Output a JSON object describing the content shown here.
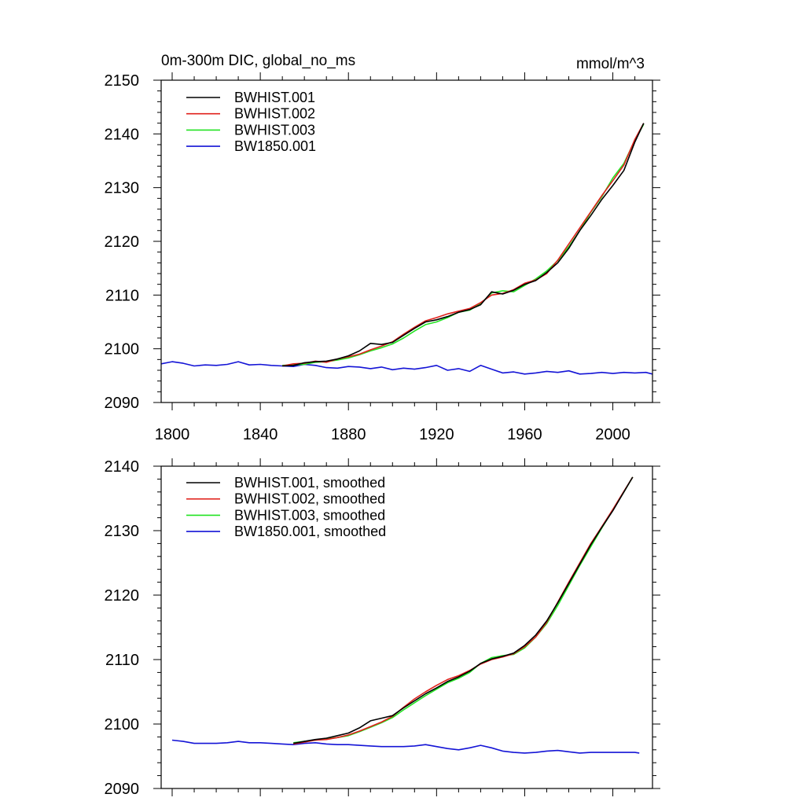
{
  "figure": {
    "title_left": "0m-300m DIC, global_no_ms",
    "title_right": "mmol/m^3"
  },
  "colors": {
    "BWHIST.001": "#000000",
    "BWHIST.002": "#e0201b",
    "BWHIST.003": "#22e322",
    "BW1850.001": "#1414d6"
  },
  "chart_data": [
    {
      "type": "line",
      "title": "0m-300m DIC, global_no_ms",
      "units": "mmol/m^3",
      "xlim": [
        1795,
        2018
      ],
      "ylim": [
        2090,
        2150
      ],
      "xticks": [
        1800,
        1840,
        1880,
        1920,
        1960,
        2000
      ],
      "xtick_labels": [
        "1800",
        "1840",
        "1880",
        "1920",
        "1960",
        "2000"
      ],
      "yticks": [
        2090,
        2100,
        2110,
        2120,
        2130,
        2140,
        2150
      ],
      "ytick_labels": [
        "2090",
        "2100",
        "2110",
        "2120",
        "2130",
        "2140",
        "2150"
      ],
      "legend": "top-left",
      "series": [
        {
          "name": "BWHIST.001",
          "color": "#000000",
          "x": [
            1850,
            1855,
            1860,
            1865,
            1870,
            1875,
            1880,
            1885,
            1890,
            1895,
            1900,
            1905,
            1910,
            1915,
            1920,
            1925,
            1930,
            1935,
            1940,
            1945,
            1950,
            1955,
            1960,
            1965,
            1970,
            1975,
            1980,
            1985,
            1990,
            1995,
            2000,
            2005,
            2010,
            2014
          ],
          "y": [
            2096.8,
            2096.9,
            2097.4,
            2097.6,
            2097.7,
            2098.1,
            2098.7,
            2099.6,
            2101.0,
            2100.8,
            2101.2,
            2102.5,
            2103.8,
            2105.0,
            2105.4,
            2106.0,
            2106.8,
            2107.3,
            2108.2,
            2110.6,
            2110.2,
            2110.9,
            2112.0,
            2112.7,
            2114.2,
            2116.0,
            2118.7,
            2122.0,
            2124.8,
            2127.8,
            2130.4,
            2133.2,
            2138.5,
            2142.0
          ]
        },
        {
          "name": "BWHIST.002",
          "color": "#e0201b",
          "x": [
            1850,
            1855,
            1860,
            1865,
            1870,
            1875,
            1880,
            1885,
            1890,
            1895,
            1900,
            1905,
            1910,
            1915,
            1920,
            1925,
            1930,
            1935,
            1940,
            1945,
            1950,
            1955,
            1960,
            1965,
            1970,
            1975,
            1980,
            1985,
            1990,
            1995,
            2000,
            2005,
            2010,
            2014
          ],
          "y": [
            2096.8,
            2097.2,
            2097.3,
            2097.7,
            2097.5,
            2098.1,
            2098.5,
            2099.0,
            2099.8,
            2100.5,
            2101.3,
            2102.7,
            2104.0,
            2105.2,
            2105.8,
            2106.5,
            2107.0,
            2107.5,
            2108.6,
            2110.0,
            2110.3,
            2111.0,
            2112.2,
            2112.8,
            2114.0,
            2116.5,
            2119.5,
            2122.5,
            2125.5,
            2128.5,
            2131.3,
            2134.2,
            2139.0,
            2142.0
          ]
        },
        {
          "name": "BWHIST.003",
          "color": "#22e322",
          "x": [
            1850,
            1855,
            1860,
            1865,
            1870,
            1875,
            1880,
            1885,
            1890,
            1895,
            1900,
            1905,
            1910,
            1915,
            1920,
            1925,
            1930,
            1935,
            1940,
            1945,
            1950,
            1955,
            1960,
            1965,
            1970,
            1975,
            1980,
            1985,
            1990,
            1995,
            2000,
            2005,
            2010,
            2014
          ],
          "y": [
            2096.9,
            2097.0,
            2097.1,
            2097.5,
            2097.6,
            2097.9,
            2098.3,
            2098.9,
            2099.6,
            2100.2,
            2100.9,
            2102.0,
            2103.3,
            2104.5,
            2105.0,
            2105.8,
            2106.8,
            2107.2,
            2108.4,
            2110.4,
            2110.8,
            2110.6,
            2111.8,
            2113.0,
            2114.5,
            2116.4,
            2119.0,
            2122.0,
            2125.4,
            2128.3,
            2131.8,
            2134.5,
            2138.8,
            2141.8
          ]
        },
        {
          "name": "BW1850.001",
          "color": "#1414d6",
          "x": [
            1795,
            1800,
            1805,
            1810,
            1815,
            1820,
            1825,
            1830,
            1835,
            1840,
            1845,
            1850,
            1855,
            1860,
            1865,
            1870,
            1875,
            1880,
            1885,
            1890,
            1895,
            1900,
            1905,
            1910,
            1915,
            1920,
            1925,
            1930,
            1935,
            1940,
            1945,
            1950,
            1955,
            1960,
            1965,
            1970,
            1975,
            1980,
            1985,
            1990,
            1995,
            2000,
            2005,
            2010,
            2015,
            2018
          ],
          "y": [
            2097.2,
            2097.6,
            2097.3,
            2096.8,
            2097.0,
            2096.9,
            2097.1,
            2097.6,
            2097.0,
            2097.1,
            2096.9,
            2096.8,
            2096.7,
            2097.1,
            2096.9,
            2096.5,
            2096.4,
            2096.7,
            2096.6,
            2096.3,
            2096.6,
            2096.1,
            2096.4,
            2096.2,
            2096.5,
            2096.9,
            2096.0,
            2096.3,
            2095.8,
            2096.9,
            2096.2,
            2095.5,
            2095.7,
            2095.3,
            2095.5,
            2095.8,
            2095.6,
            2095.9,
            2095.3,
            2095.4,
            2095.6,
            2095.4,
            2095.6,
            2095.5,
            2095.6,
            2095.3
          ]
        }
      ]
    },
    {
      "type": "line",
      "title": "",
      "xlim": [
        1795,
        2018
      ],
      "ylim": [
        2090,
        2140
      ],
      "xticks": [
        1800,
        1840,
        1880,
        1920,
        1960,
        2000
      ],
      "yticks": [
        2090,
        2100,
        2110,
        2120,
        2130,
        2140
      ],
      "ytick_labels": [
        "2090",
        "2100",
        "2110",
        "2120",
        "2130",
        "2140"
      ],
      "legend": "top-left",
      "series": [
        {
          "name": "BWHIST.001, smoothed",
          "color": "#000000",
          "x": [
            1855,
            1860,
            1865,
            1870,
            1875,
            1880,
            1885,
            1890,
            1895,
            1900,
            1905,
            1910,
            1915,
            1920,
            1925,
            1930,
            1935,
            1940,
            1945,
            1950,
            1955,
            1960,
            1965,
            1970,
            1975,
            1980,
            1985,
            1990,
            1995,
            2000,
            2005,
            2009
          ],
          "y": [
            2097.0,
            2097.3,
            2097.6,
            2097.8,
            2098.2,
            2098.6,
            2099.4,
            2100.5,
            2100.9,
            2101.3,
            2102.5,
            2103.6,
            2104.7,
            2105.6,
            2106.6,
            2107.3,
            2108.2,
            2109.4,
            2110.1,
            2110.5,
            2111.0,
            2112.2,
            2113.8,
            2116.0,
            2118.8,
            2121.8,
            2124.8,
            2127.8,
            2130.5,
            2133.1,
            2136.0,
            2138.3
          ]
        },
        {
          "name": "BWHIST.002, smoothed",
          "color": "#e0201b",
          "x": [
            1855,
            1860,
            1865,
            1870,
            1875,
            1880,
            1885,
            1890,
            1895,
            1900,
            1905,
            1910,
            1915,
            1920,
            1925,
            1930,
            1935,
            1940,
            1945,
            1950,
            1955,
            1960,
            1965,
            1970,
            1975,
            1980,
            1985,
            1990,
            1995,
            2000,
            2005,
            2009
          ],
          "y": [
            2096.9,
            2097.2,
            2097.5,
            2097.6,
            2097.9,
            2098.3,
            2098.9,
            2099.6,
            2100.3,
            2101.2,
            2102.6,
            2103.9,
            2105.0,
            2106.0,
            2106.9,
            2107.5,
            2108.3,
            2109.3,
            2110.0,
            2110.4,
            2110.9,
            2112.0,
            2113.5,
            2115.8,
            2118.9,
            2122.0,
            2125.0,
            2128.0,
            2130.6,
            2133.3,
            2136.1,
            2138.3
          ]
        },
        {
          "name": "BWHIST.003, smoothed",
          "color": "#22e322",
          "x": [
            1855,
            1860,
            1865,
            1870,
            1875,
            1880,
            1885,
            1890,
            1895,
            1900,
            1905,
            1910,
            1915,
            1920,
            1925,
            1930,
            1935,
            1940,
            1945,
            1950,
            1955,
            1960,
            1965,
            1970,
            1975,
            1980,
            1985,
            1990,
            1995,
            2000,
            2005,
            2009
          ],
          "y": [
            2097.1,
            2097.3,
            2097.5,
            2097.7,
            2097.9,
            2098.2,
            2098.8,
            2099.5,
            2100.2,
            2101.0,
            2102.2,
            2103.3,
            2104.4,
            2105.4,
            2106.4,
            2107.1,
            2108.0,
            2109.4,
            2110.3,
            2110.6,
            2110.8,
            2111.8,
            2113.5,
            2115.6,
            2118.4,
            2121.5,
            2124.6,
            2127.5,
            2130.4,
            2133.2,
            2136.0,
            2138.3
          ]
        },
        {
          "name": "BW1850.001, smoothed",
          "color": "#1414d6",
          "x": [
            1800,
            1805,
            1810,
            1815,
            1820,
            1825,
            1830,
            1835,
            1840,
            1845,
            1850,
            1855,
            1860,
            1865,
            1870,
            1875,
            1880,
            1885,
            1890,
            1895,
            1900,
            1905,
            1910,
            1915,
            1920,
            1925,
            1930,
            1935,
            1940,
            1945,
            1950,
            1955,
            1960,
            1965,
            1970,
            1975,
            1980,
            1985,
            1990,
            1995,
            2000,
            2005,
            2010,
            2012
          ],
          "y": [
            2097.5,
            2097.3,
            2097.0,
            2097.0,
            2097.0,
            2097.1,
            2097.3,
            2097.1,
            2097.1,
            2097.0,
            2096.9,
            2096.8,
            2097.0,
            2097.1,
            2096.9,
            2096.8,
            2096.8,
            2096.7,
            2096.6,
            2096.5,
            2096.5,
            2096.5,
            2096.6,
            2096.8,
            2096.5,
            2096.2,
            2096.0,
            2096.3,
            2096.7,
            2096.3,
            2095.8,
            2095.6,
            2095.5,
            2095.6,
            2095.8,
            2095.9,
            2095.7,
            2095.5,
            2095.6,
            2095.6,
            2095.6,
            2095.6,
            2095.6,
            2095.5
          ]
        }
      ]
    }
  ]
}
